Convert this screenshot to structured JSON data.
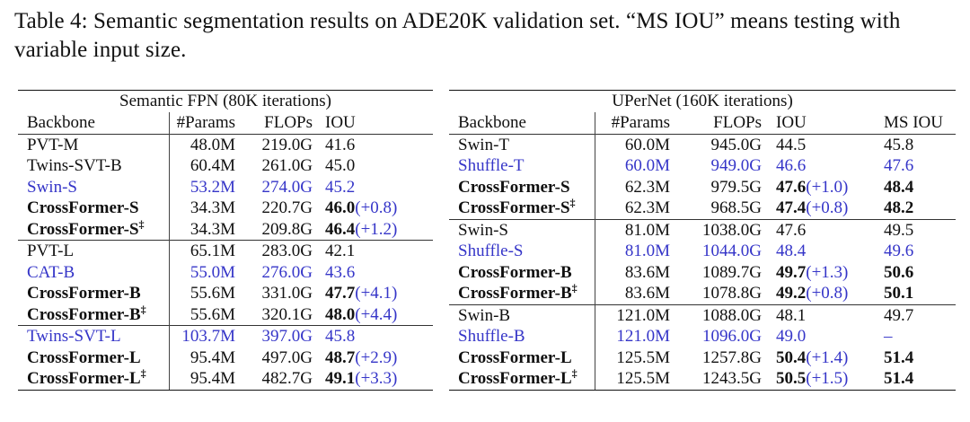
{
  "caption": "Table 4: Semantic segmentation results on ADE20K validation set. “MS IOU” means testing with variable input size.",
  "colors": {
    "text": "#111111",
    "highlight": "#3535c8"
  },
  "left": {
    "title": "Semantic FPN (80K iterations)",
    "headers": [
      "Backbone",
      "#Params",
      "FLOPs",
      "IOU"
    ],
    "groups": [
      [
        {
          "backbone": "PVT-M",
          "sup": "",
          "params": "48.0M",
          "flops": "219.0G",
          "iou": "41.6",
          "gain": "",
          "bold": false,
          "blue": false
        },
        {
          "backbone": "Twins-SVT-B",
          "sup": "",
          "params": "60.4M",
          "flops": "261.0G",
          "iou": "45.0",
          "gain": "",
          "bold": false,
          "blue": false
        },
        {
          "backbone": "Swin-S",
          "sup": "",
          "params": "53.2M",
          "flops": "274.0G",
          "iou": "45.2",
          "gain": "",
          "bold": false,
          "blue": true
        },
        {
          "backbone": "CrossFormer-S",
          "sup": "",
          "params": "34.3M",
          "flops": "220.7G",
          "iou": "46.0",
          "gain": "(+0.8)",
          "bold": true,
          "blue": false
        },
        {
          "backbone": "CrossFormer-S",
          "sup": "‡",
          "params": "34.3M",
          "flops": "209.8G",
          "iou": "46.4",
          "gain": "(+1.2)",
          "bold": true,
          "blue": false
        }
      ],
      [
        {
          "backbone": "PVT-L",
          "sup": "",
          "params": "65.1M",
          "flops": "283.0G",
          "iou": "42.1",
          "gain": "",
          "bold": false,
          "blue": false
        },
        {
          "backbone": "CAT-B",
          "sup": "",
          "params": "55.0M",
          "flops": "276.0G",
          "iou": "43.6",
          "gain": "",
          "bold": false,
          "blue": true
        },
        {
          "backbone": "CrossFormer-B",
          "sup": "",
          "params": "55.6M",
          "flops": "331.0G",
          "iou": "47.7",
          "gain": "(+4.1)",
          "bold": true,
          "blue": false
        },
        {
          "backbone": "CrossFormer-B",
          "sup": "‡",
          "params": "55.6M",
          "flops": "320.1G",
          "iou": "48.0",
          "gain": "(+4.4)",
          "bold": true,
          "blue": false
        }
      ],
      [
        {
          "backbone": "Twins-SVT-L",
          "sup": "",
          "params": "103.7M",
          "flops": "397.0G",
          "iou": "45.8",
          "gain": "",
          "bold": false,
          "blue": true
        },
        {
          "backbone": "CrossFormer-L",
          "sup": "",
          "params": "95.4M",
          "flops": "497.0G",
          "iou": "48.7",
          "gain": "(+2.9)",
          "bold": true,
          "blue": false
        },
        {
          "backbone": "CrossFormer-L",
          "sup": "‡",
          "params": "95.4M",
          "flops": "482.7G",
          "iou": "49.1",
          "gain": "(+3.3)",
          "bold": true,
          "blue": false
        }
      ]
    ]
  },
  "right": {
    "title": "UPerNet (160K iterations)",
    "headers": [
      "Backbone",
      "#Params",
      "FLOPs",
      "IOU",
      "MS IOU"
    ],
    "groups": [
      [
        {
          "backbone": "Swin-T",
          "sup": "",
          "params": "60.0M",
          "flops": "945.0G",
          "iou": "44.5",
          "gain": "",
          "ms": "45.8",
          "bold": false,
          "blue": false
        },
        {
          "backbone": "Shuffle-T",
          "sup": "",
          "params": "60.0M",
          "flops": "949.0G",
          "iou": "46.6",
          "gain": "",
          "ms": "47.6",
          "bold": false,
          "blue": true
        },
        {
          "backbone": "CrossFormer-S",
          "sup": "",
          "params": "62.3M",
          "flops": "979.5G",
          "iou": "47.6",
          "gain": "(+1.0)",
          "ms": "48.4",
          "bold": true,
          "blue": false
        },
        {
          "backbone": "CrossFormer-S",
          "sup": "‡",
          "params": "62.3M",
          "flops": "968.5G",
          "iou": "47.4",
          "gain": "(+0.8)",
          "ms": "48.2",
          "bold": true,
          "blue": false
        }
      ],
      [
        {
          "backbone": "Swin-S",
          "sup": "",
          "params": "81.0M",
          "flops": "1038.0G",
          "iou": "47.6",
          "gain": "",
          "ms": "49.5",
          "bold": false,
          "blue": false
        },
        {
          "backbone": "Shuffle-S",
          "sup": "",
          "params": "81.0M",
          "flops": "1044.0G",
          "iou": "48.4",
          "gain": "",
          "ms": "49.6",
          "bold": false,
          "blue": true
        },
        {
          "backbone": "CrossFormer-B",
          "sup": "",
          "params": "83.6M",
          "flops": "1089.7G",
          "iou": "49.7",
          "gain": "(+1.3)",
          "ms": "50.6",
          "bold": true,
          "blue": false
        },
        {
          "backbone": "CrossFormer-B",
          "sup": "‡",
          "params": "83.6M",
          "flops": "1078.8G",
          "iou": "49.2",
          "gain": "(+0.8)",
          "ms": "50.1",
          "bold": true,
          "blue": false
        }
      ],
      [
        {
          "backbone": "Swin-B",
          "sup": "",
          "params": "121.0M",
          "flops": "1088.0G",
          "iou": "48.1",
          "gain": "",
          "ms": "49.7",
          "bold": false,
          "blue": false
        },
        {
          "backbone": "Shuffle-B",
          "sup": "",
          "params": "121.0M",
          "flops": "1096.0G",
          "iou": "49.0",
          "gain": "",
          "ms": "–",
          "bold": false,
          "blue": true
        },
        {
          "backbone": "CrossFormer-L",
          "sup": "",
          "params": "125.5M",
          "flops": "1257.8G",
          "iou": "50.4",
          "gain": "(+1.4)",
          "ms": "51.4",
          "bold": true,
          "blue": false
        },
        {
          "backbone": "CrossFormer-L",
          "sup": "‡",
          "params": "125.5M",
          "flops": "1243.5G",
          "iou": "50.5",
          "gain": "(+1.5)",
          "ms": "51.4",
          "bold": true,
          "blue": false
        }
      ]
    ]
  }
}
